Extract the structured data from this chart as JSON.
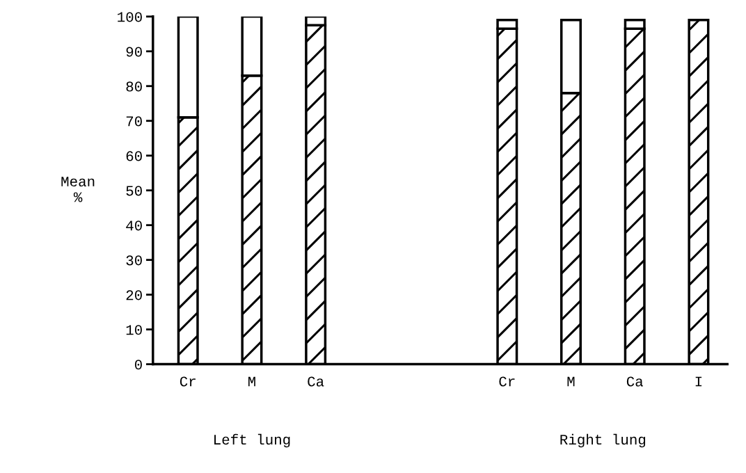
{
  "chart_data": {
    "type": "bar",
    "stacked": true,
    "ylabel": "Mean\n%",
    "categories": [
      "Cr",
      "M",
      "Ca",
      null,
      null,
      "Cr",
      "M",
      "Ca",
      "I"
    ],
    "series": [
      {
        "color": "#000000",
        "values": [
          71,
          83,
          97.5,
          null,
          null,
          96.5,
          78,
          96.5,
          99
        ]
      },
      {
        "color": "#ffffff",
        "values": [
          29,
          17,
          2.5,
          null,
          null,
          2.5,
          21,
          2.5,
          null
        ]
      }
    ],
    "ylim": [
      0,
      100
    ],
    "yticks": [
      0,
      10,
      20,
      30,
      40,
      50,
      60,
      70,
      80,
      90,
      100
    ],
    "annotations": [
      "Left lung",
      "Right lung"
    ],
    "grid": false,
    "legend": false
  }
}
